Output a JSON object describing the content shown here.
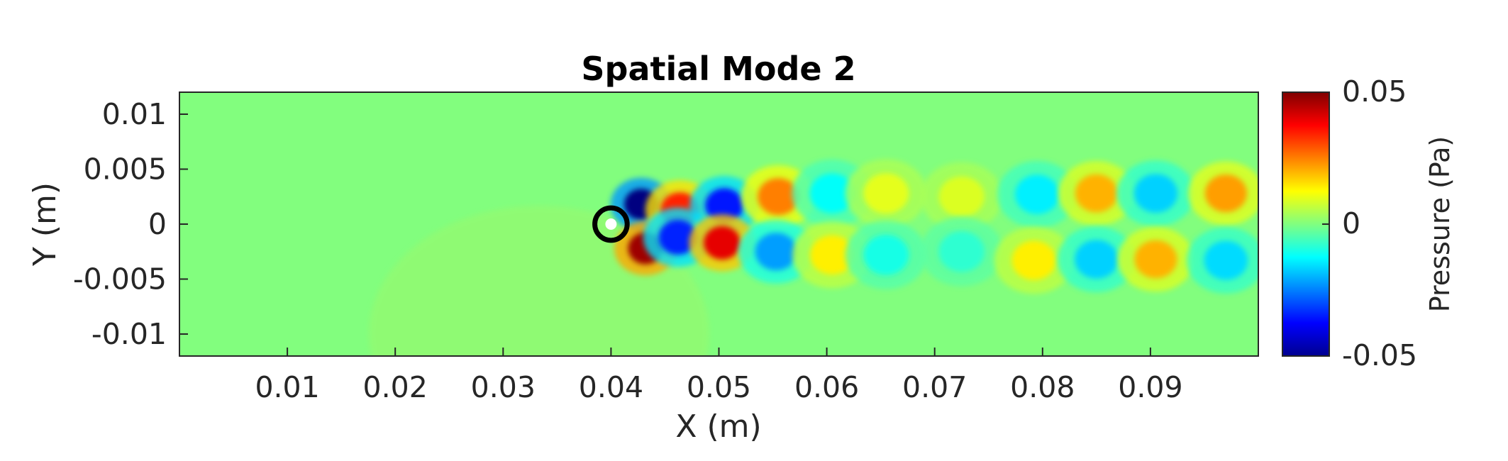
{
  "chart_data": {
    "type": "heatmap",
    "title": "Spatial Mode 2",
    "xlabel": "X (m)",
    "ylabel": "Y (m)",
    "xlim": [
      0,
      0.1
    ],
    "ylim": [
      -0.012,
      0.012
    ],
    "x_ticks": [
      0.01,
      0.02,
      0.03,
      0.04,
      0.05,
      0.06,
      0.07,
      0.08,
      0.09
    ],
    "x_tick_labels": [
      "0.01",
      "0.02",
      "0.03",
      "0.04",
      "0.05",
      "0.06",
      "0.07",
      "0.08",
      "0.09"
    ],
    "y_ticks": [
      0.01,
      0.005,
      0,
      -0.005,
      -0.01
    ],
    "y_tick_labels": [
      "0.01",
      "0.005",
      "0",
      "-0.005",
      "-0.01"
    ],
    "colorbar": {
      "label": "Pressure (Pa)",
      "limits": [
        -0.05,
        0.05
      ],
      "ticks": [
        0.05,
        0,
        -0.05
      ],
      "tick_labels": [
        "0.05",
        "0",
        "-0.05"
      ],
      "colormap": "jet"
    },
    "cylinder": {
      "x": 0.04,
      "y": 0,
      "diameter": 0.003
    },
    "structures": [
      {
        "x": 0.0428,
        "y": 0.0018,
        "value": -0.05
      },
      {
        "x": 0.0432,
        "y": -0.0022,
        "value": 0.047
      },
      {
        "x": 0.0464,
        "y": 0.0013,
        "value": 0.034
      },
      {
        "x": 0.0462,
        "y": -0.0012,
        "value": -0.034
      },
      {
        "x": 0.0505,
        "y": 0.0017,
        "value": -0.035
      },
      {
        "x": 0.0503,
        "y": -0.0017,
        "value": 0.04
      },
      {
        "x": 0.0555,
        "y": 0.0025,
        "value": 0.025
      },
      {
        "x": 0.0553,
        "y": -0.0025,
        "value": -0.022
      },
      {
        "x": 0.0605,
        "y": 0.0028,
        "value": -0.012
      },
      {
        "x": 0.0605,
        "y": -0.0028,
        "value": 0.014
      },
      {
        "x": 0.0655,
        "y": 0.0028,
        "value": 0.01
      },
      {
        "x": 0.0655,
        "y": -0.0028,
        "value": -0.01
      },
      {
        "x": 0.0725,
        "y": 0.0025,
        "value": 0.009
      },
      {
        "x": 0.0725,
        "y": -0.0025,
        "value": -0.008
      },
      {
        "x": 0.0795,
        "y": 0.0027,
        "value": -0.014
      },
      {
        "x": 0.0792,
        "y": -0.0033,
        "value": 0.014
      },
      {
        "x": 0.085,
        "y": 0.0028,
        "value": 0.02
      },
      {
        "x": 0.085,
        "y": -0.0032,
        "value": -0.017
      },
      {
        "x": 0.0905,
        "y": 0.0028,
        "value": -0.017
      },
      {
        "x": 0.0905,
        "y": -0.0032,
        "value": 0.02
      },
      {
        "x": 0.097,
        "y": 0.0028,
        "value": 0.022
      },
      {
        "x": 0.097,
        "y": -0.0033,
        "value": -0.016
      }
    ]
  }
}
